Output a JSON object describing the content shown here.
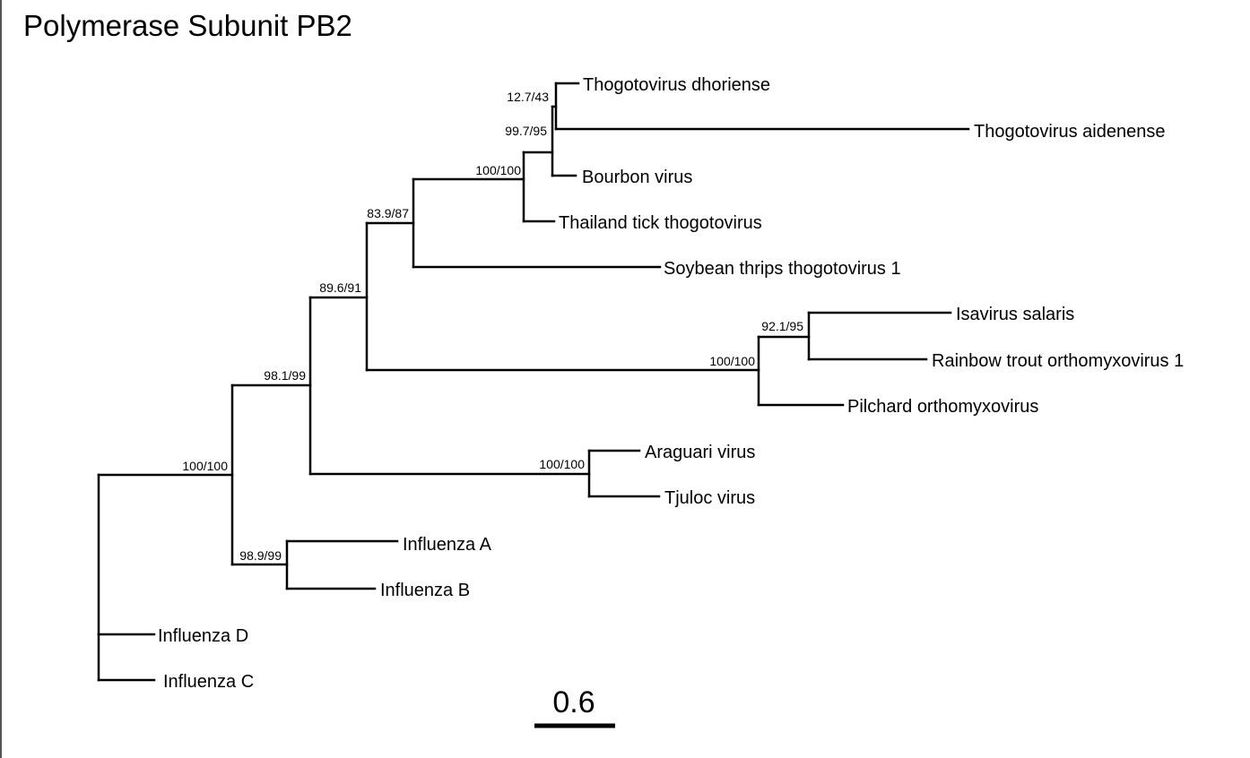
{
  "title": "Polymerase Subunit PB2",
  "tree": {
    "tips": [
      {
        "id": "thogoto-dhori",
        "label": "Thogotovirus dhoriense"
      },
      {
        "id": "thogoto-aiden",
        "label": "Thogotovirus aidenense"
      },
      {
        "id": "bourbon",
        "label": "Bourbon virus"
      },
      {
        "id": "thailand-tick",
        "label": "Thailand tick thogotovirus"
      },
      {
        "id": "soybean-thrips",
        "label": "Soybean thrips thogotovirus 1"
      },
      {
        "id": "isavirus",
        "label": "Isavirus salaris"
      },
      {
        "id": "rainbow-trout",
        "label": "Rainbow trout orthomyxovirus 1"
      },
      {
        "id": "pilchard",
        "label": "Pilchard orthomyxovirus"
      },
      {
        "id": "araguari",
        "label": "Araguari virus"
      },
      {
        "id": "tjuloc",
        "label": "Tjuloc virus"
      },
      {
        "id": "influenza-a",
        "label": "Influenza A"
      },
      {
        "id": "influenza-b",
        "label": "Influenza B"
      },
      {
        "id": "influenza-d",
        "label": "Influenza D"
      },
      {
        "id": "influenza-c",
        "label": "Influenza C"
      }
    ],
    "support_values": [
      {
        "id": "n-thogoto-dhori-aiden",
        "label": "12.7/43"
      },
      {
        "id": "n-thogoto-bourbon",
        "label": "99.7/95"
      },
      {
        "id": "n-thogoto-thailand",
        "label": "100/100"
      },
      {
        "id": "n-thogoto-soybean",
        "label": "83.9/87"
      },
      {
        "id": "n-thogoto-isa",
        "label": "89.6/91"
      },
      {
        "id": "n-isa-rainbow",
        "label": "92.1/95"
      },
      {
        "id": "n-isa-pilchard",
        "label": "100/100"
      },
      {
        "id": "n-araguari-tjuloc",
        "label": "100/100"
      },
      {
        "id": "n-ortho-main",
        "label": "98.1/99"
      },
      {
        "id": "n-root-ab",
        "label": "100/100"
      },
      {
        "id": "n-influenza-ab",
        "label": "98.9/99"
      }
    ]
  },
  "scale_bar": {
    "label": "0.6",
    "value": 0.6
  }
}
